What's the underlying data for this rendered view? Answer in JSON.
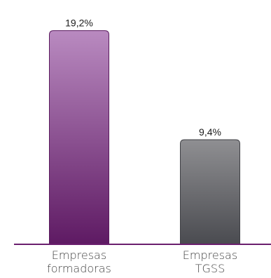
{
  "chart_data": {
    "type": "bar",
    "categories": [
      [
        "Empresas",
        "formadoras"
      ],
      [
        "Empresas",
        "TGSS"
      ]
    ],
    "values": [
      19.2,
      9.4
    ],
    "value_labels": [
      "19,2%",
      "9,4%"
    ],
    "ylim": [
      0,
      20
    ],
    "grid": false,
    "legend": "none",
    "title": "",
    "xlabel": "",
    "ylabel": "",
    "colors": {
      "bar_1_top": "#b98ac0",
      "bar_1_bottom": "#5e1a63",
      "bar_2_top": "#8f8f92",
      "bar_2_bottom": "#4a4b50",
      "baseline": "#6b1f6e"
    }
  }
}
